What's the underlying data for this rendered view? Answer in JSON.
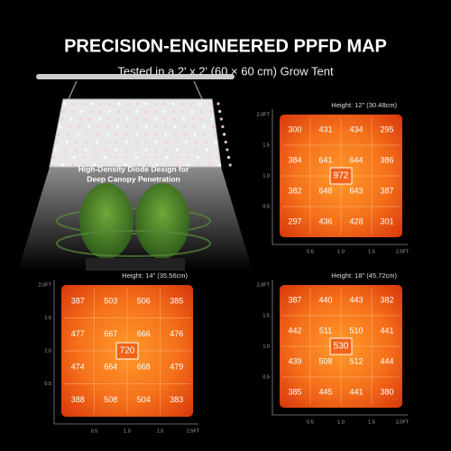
{
  "header": {
    "title": "PRECISION-ENGINEERED PPFD MAP",
    "subtitle": "Tested in a 2' x 2' (60 × 60 cm) Grow Tent"
  },
  "illustration": {
    "caption": [
      "High-Density Diode Design for",
      "Deep Canopy Penetration"
    ]
  },
  "maps": [
    {
      "height_label": "Height: 12\" (30.48cm)",
      "rows": [
        [
          300,
          431,
          434,
          295
        ],
        [
          384,
          641,
          644,
          386
        ],
        [
          382,
          648,
          643,
          387
        ],
        [
          297,
          436,
          428,
          301
        ]
      ],
      "center": 972,
      "y_ticks": [
        "2.0FT",
        "1.5",
        "1.0",
        "0.5"
      ],
      "x_ticks": [
        "0.5",
        "1.0",
        "1.5",
        "2.0FT"
      ]
    },
    {
      "height_label": "Height: 14\" (35.56cm)",
      "rows": [
        [
          387,
          503,
          506,
          385
        ],
        [
          477,
          667,
          666,
          476
        ],
        [
          474,
          664,
          668,
          479
        ],
        [
          388,
          508,
          504,
          383
        ]
      ],
      "center": 720,
      "y_ticks": [
        "2.0FT",
        "1.5",
        "1.0",
        "0.5"
      ],
      "x_ticks": [
        "0.5",
        "1.0",
        "1.5",
        "2.0FT"
      ]
    },
    {
      "height_label": "Height: 18\" (45.72cm)",
      "rows": [
        [
          387,
          440,
          443,
          382
        ],
        [
          442,
          511,
          510,
          441
        ],
        [
          439,
          508,
          512,
          444
        ],
        [
          385,
          445,
          441,
          380
        ]
      ],
      "center": 530,
      "y_ticks": [
        "2.0FT",
        "1.5",
        "1.0",
        "0.5"
      ],
      "x_ticks": [
        "0.5",
        "1.0",
        "1.5",
        "2.0FT"
      ]
    }
  ]
}
